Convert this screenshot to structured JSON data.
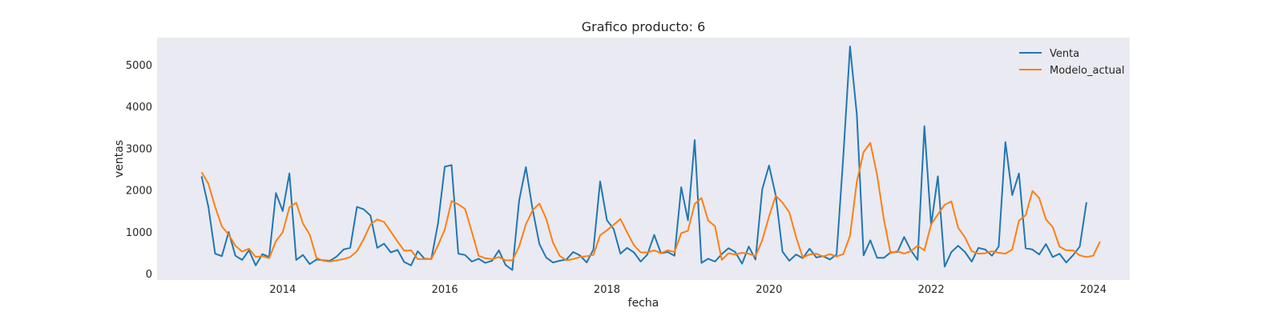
{
  "chart_data": {
    "type": "line",
    "title": "Grafico producto: 6",
    "xlabel": "fecha",
    "ylabel": "ventas",
    "xlim": [
      2012.45,
      2024.45
    ],
    "ylim": [
      -150,
      5650
    ],
    "x_ticks": [
      2014,
      2016,
      2018,
      2020,
      2022,
      2024
    ],
    "y_ticks": [
      0,
      1000,
      2000,
      3000,
      4000,
      5000
    ],
    "grid": false,
    "legend_position": "top-right",
    "background_color": "#eaeaf2",
    "x_start": 2013.0,
    "x_step": 0.08333,
    "series": [
      {
        "name": "Venta",
        "color": "#1f77b4",
        "values": [
          2330,
          1600,
          480,
          420,
          1000,
          430,
          330,
          560,
          200,
          470,
          400,
          1930,
          1500,
          2400,
          330,
          450,
          230,
          340,
          320,
          310,
          410,
          580,
          620,
          1600,
          1540,
          1390,
          620,
          720,
          510,
          570,
          280,
          200,
          540,
          360,
          350,
          1210,
          2560,
          2600,
          480,
          450,
          290,
          360,
          260,
          310,
          560,
          210,
          90,
          1750,
          2550,
          1540,
          710,
          390,
          270,
          310,
          340,
          520,
          440,
          270,
          580,
          2210,
          1280,
          1070,
          480,
          620,
          510,
          290,
          460,
          930,
          490,
          520,
          430,
          2070,
          1280,
          3200,
          260,
          360,
          290,
          470,
          610,
          520,
          240,
          650,
          340,
          2020,
          2590,
          1870,
          530,
          310,
          460,
          370,
          600,
          390,
          420,
          340,
          460,
          2810,
          5440,
          3800,
          440,
          800,
          380,
          380,
          510,
          520,
          880,
          560,
          330,
          3530,
          1160,
          2330,
          170,
          520,
          670,
          520,
          290,
          620,
          580,
          430,
          650,
          3150,
          1880,
          2400,
          610,
          580,
          460,
          710,
          400,
          480,
          270,
          440,
          650,
          1710
        ]
      },
      {
        "name": "Modelo_actual",
        "color": "#ff7f0e",
        "values": [
          2430,
          2150,
          1600,
          1130,
          940,
          670,
          530,
          600,
          400,
          420,
          370,
          780,
          990,
          1590,
          1700,
          1200,
          940,
          380,
          310,
          290,
          320,
          350,
          400,
          540,
          830,
          1180,
          1300,
          1240,
          1010,
          770,
          550,
          560,
          350,
          350,
          350,
          680,
          1060,
          1740,
          1660,
          1550,
          1000,
          430,
          370,
          350,
          400,
          320,
          320,
          650,
          1180,
          1520,
          1680,
          1320,
          750,
          430,
          320,
          350,
          400,
          420,
          450,
          920,
          1040,
          1170,
          1310,
          990,
          680,
          510,
          510,
          560,
          490,
          560,
          520,
          970,
          1030,
          1670,
          1810,
          1270,
          1140,
          330,
          490,
          460,
          500,
          480,
          420,
          800,
          1370,
          1870,
          1700,
          1470,
          880,
          390,
          460,
          480,
          410,
          470,
          410,
          470,
          910,
          2210,
          2910,
          3130,
          2360,
          1300,
          490,
          540,
          480,
          540,
          670,
          560,
          1180,
          1420,
          1650,
          1730,
          1100,
          870,
          540,
          480,
          490,
          540,
          500,
          480,
          580,
          1270,
          1400,
          1980,
          1810,
          1300,
          1120,
          650,
          560,
          560,
          440,
          400,
          430,
          770
        ]
      }
    ]
  }
}
